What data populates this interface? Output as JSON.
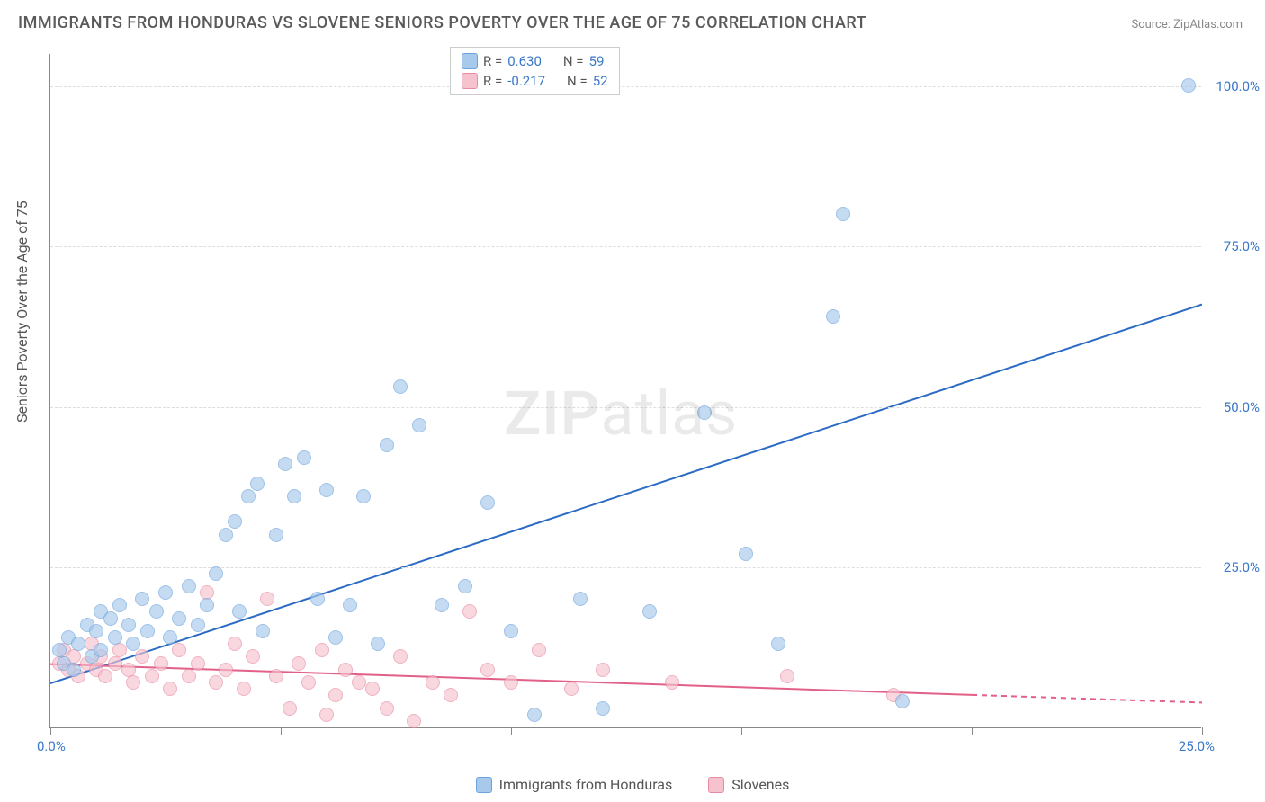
{
  "title": "IMMIGRANTS FROM HONDURAS VS SLOVENE SENIORS POVERTY OVER THE AGE OF 75 CORRELATION CHART",
  "source_label": "Source: ",
  "source_site": "ZipAtlas.com",
  "ylabel": "Seniors Poverty Over the Age of 75",
  "watermark_bold": "ZIP",
  "watermark_rest": "atlas",
  "chart": {
    "type": "scatter",
    "xlim": [
      0,
      25
    ],
    "ylim": [
      0,
      105
    ],
    "x_ticks_minor": [
      0,
      5,
      10,
      15,
      20,
      25
    ],
    "x_ticks_labeled": {
      "0": "0.0%",
      "25": "25.0%"
    },
    "y_ticks_labeled": {
      "25": "25.0%",
      "50": "50.0%",
      "75": "75.0%",
      "100": "100.0%"
    },
    "grid_color": "#dddddd",
    "background_color": "#ffffff",
    "axis_color": "#888888",
    "tick_label_color": "#3a78c9",
    "series": [
      {
        "name": "Immigrants from Honduras",
        "color_fill": "#a7c9ec",
        "color_stroke": "#6aa3dd",
        "marker_radius": 8,
        "R": "0.630",
        "N": "59",
        "trend": {
          "x1": 0,
          "y1": 7,
          "x2": 25,
          "y2": 66,
          "stroke": "#2b6bc4",
          "width": 2,
          "dash_after_x": null
        },
        "points": [
          [
            0.2,
            12
          ],
          [
            0.3,
            10
          ],
          [
            0.4,
            14
          ],
          [
            0.5,
            9
          ],
          [
            0.6,
            13
          ],
          [
            0.8,
            16
          ],
          [
            0.9,
            11
          ],
          [
            1.0,
            15
          ],
          [
            1.1,
            18
          ],
          [
            1.1,
            12
          ],
          [
            1.3,
            17
          ],
          [
            1.4,
            14
          ],
          [
            1.5,
            19
          ],
          [
            1.7,
            16
          ],
          [
            1.8,
            13
          ],
          [
            2.0,
            20
          ],
          [
            2.1,
            15
          ],
          [
            2.3,
            18
          ],
          [
            2.5,
            21
          ],
          [
            2.6,
            14
          ],
          [
            2.8,
            17
          ],
          [
            3.0,
            22
          ],
          [
            3.2,
            16
          ],
          [
            3.4,
            19
          ],
          [
            3.6,
            24
          ],
          [
            3.8,
            30
          ],
          [
            4.0,
            32
          ],
          [
            4.1,
            18
          ],
          [
            4.3,
            36
          ],
          [
            4.5,
            38
          ],
          [
            4.6,
            15
          ],
          [
            4.9,
            30
          ],
          [
            5.1,
            41
          ],
          [
            5.3,
            36
          ],
          [
            5.5,
            42
          ],
          [
            5.8,
            20
          ],
          [
            6.0,
            37
          ],
          [
            6.2,
            14
          ],
          [
            6.5,
            19
          ],
          [
            6.8,
            36
          ],
          [
            7.1,
            13
          ],
          [
            7.3,
            44
          ],
          [
            7.6,
            53
          ],
          [
            8.0,
            47
          ],
          [
            8.5,
            19
          ],
          [
            9.0,
            22
          ],
          [
            9.5,
            35
          ],
          [
            10.0,
            15
          ],
          [
            10.5,
            2
          ],
          [
            11.5,
            20
          ],
          [
            12.0,
            3
          ],
          [
            13.0,
            18
          ],
          [
            14.2,
            49
          ],
          [
            15.1,
            27
          ],
          [
            15.8,
            13
          ],
          [
            17.0,
            64
          ],
          [
            17.2,
            80
          ],
          [
            18.5,
            4
          ],
          [
            24.7,
            100
          ]
        ]
      },
      {
        "name": "Slovenes",
        "color_fill": "#f5c2ce",
        "color_stroke": "#e98aa3",
        "marker_radius": 8,
        "R": "-0.217",
        "N": "52",
        "trend": {
          "x1": 0,
          "y1": 10,
          "x2": 25,
          "y2": 4,
          "stroke": "#e26088",
          "width": 2,
          "dash_after_x": 20
        },
        "points": [
          [
            0.2,
            10
          ],
          [
            0.3,
            12
          ],
          [
            0.4,
            9
          ],
          [
            0.5,
            11
          ],
          [
            0.6,
            8
          ],
          [
            0.8,
            10
          ],
          [
            0.9,
            13
          ],
          [
            1.0,
            9
          ],
          [
            1.1,
            11
          ],
          [
            1.2,
            8
          ],
          [
            1.4,
            10
          ],
          [
            1.5,
            12
          ],
          [
            1.7,
            9
          ],
          [
            1.8,
            7
          ],
          [
            2.0,
            11
          ],
          [
            2.2,
            8
          ],
          [
            2.4,
            10
          ],
          [
            2.6,
            6
          ],
          [
            2.8,
            12
          ],
          [
            3.0,
            8
          ],
          [
            3.2,
            10
          ],
          [
            3.4,
            21
          ],
          [
            3.6,
            7
          ],
          [
            3.8,
            9
          ],
          [
            4.0,
            13
          ],
          [
            4.2,
            6
          ],
          [
            4.4,
            11
          ],
          [
            4.7,
            20
          ],
          [
            4.9,
            8
          ],
          [
            5.2,
            3
          ],
          [
            5.4,
            10
          ],
          [
            5.6,
            7
          ],
          [
            5.9,
            12
          ],
          [
            6.0,
            2
          ],
          [
            6.2,
            5
          ],
          [
            6.4,
            9
          ],
          [
            6.7,
            7
          ],
          [
            7.0,
            6
          ],
          [
            7.3,
            3
          ],
          [
            7.6,
            11
          ],
          [
            7.9,
            1
          ],
          [
            8.3,
            7
          ],
          [
            8.7,
            5
          ],
          [
            9.1,
            18
          ],
          [
            9.5,
            9
          ],
          [
            10.0,
            7
          ],
          [
            10.6,
            12
          ],
          [
            11.3,
            6
          ],
          [
            12.0,
            9
          ],
          [
            13.5,
            7
          ],
          [
            16.0,
            8
          ],
          [
            18.3,
            5
          ]
        ]
      }
    ]
  },
  "legend_top_labels": {
    "R": "R  =",
    "N": "N  ="
  },
  "legend_bottom": [
    "Immigrants from Honduras",
    "Slovenes"
  ]
}
